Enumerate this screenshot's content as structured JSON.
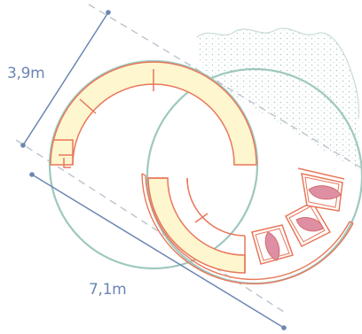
{
  "dimensions": {
    "width_label": "3,9m",
    "length_label": "7,1m"
  },
  "colors": {
    "dimension_line": "#6b86b2",
    "guide_dash": "#b9c3cf",
    "circle_outline": "#9ec8bf",
    "bench_fill": "#fef6cf",
    "bench_stroke": "#e8775a",
    "planter_fill": "#de8fa4",
    "planter_stroke": "#d46d6d",
    "gravel_dot": "#a8c8bc",
    "gravel_edge": "#c8dcd4"
  },
  "icons": {
    "gravel": "gravel-texture",
    "planter": "planter-leaf-shape"
  }
}
